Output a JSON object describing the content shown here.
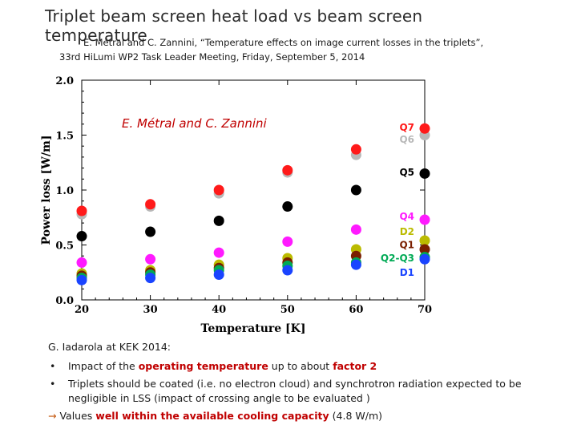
{
  "slide": {
    "title_line1": "Triplet beam screen heat load vs beam screen",
    "title_line2": "temperature",
    "source_line1": "E. Métral and C. Zannini, “Temperature effects on image current losses in the triplets”,",
    "source_line2": "33rd HiLumi WP2 Task Leader Meeting, Friday, September 5, 2014"
  },
  "notes": {
    "heading": "G. Iadarola at KEK 2014:",
    "bullet1_pre": "Impact of the ",
    "bullet1_red1": "operating temperature",
    "bullet1_mid": " up to about ",
    "bullet1_red2": "factor 2",
    "bullet2": "Triplets should be coated (i.e. no electron cloud) and synchrotron radiation expected to be negligible in LSS (impact of crossing angle to be evaluated )",
    "arrow": "→",
    "conclusion_pre": " Values ",
    "conclusion_red": "well within the available cooling capacity",
    "conclusion_post": " (4.8 W/m)"
  },
  "chart_data": {
    "type": "scatter",
    "annotation": "E. Métral and C. Zannini",
    "xlabel": "Temperature [K]",
    "ylabel": "Power loss [W/m]",
    "xlim": [
      20,
      70
    ],
    "ylim": [
      0.0,
      2.0
    ],
    "xticks": [
      "20",
      "30",
      "40",
      "50",
      "60",
      "70"
    ],
    "yticks": [
      "0.0",
      "0.5",
      "1.0",
      "1.5",
      "2.0"
    ],
    "grid": false,
    "x": [
      20,
      30,
      40,
      50,
      60,
      70
    ],
    "series": [
      {
        "name": "Q6",
        "color": "#b8b8b8",
        "values": [
          0.78,
          0.85,
          0.97,
          1.16,
          1.32,
          1.5
        ],
        "label_y": 1.46
      },
      {
        "name": "Q7",
        "color": "#ff1a1a",
        "values": [
          0.81,
          0.87,
          1.0,
          1.18,
          1.37,
          1.56
        ],
        "label_y": 1.57
      },
      {
        "name": "Q5",
        "color": "#000000",
        "values": [
          0.58,
          0.62,
          0.72,
          0.85,
          1.0,
          1.15
        ],
        "label_y": 1.16
      },
      {
        "name": "Q4",
        "color": "#ff1aff",
        "values": [
          0.34,
          0.37,
          0.43,
          0.53,
          0.64,
          0.73
        ],
        "label_y": 0.76
      },
      {
        "name": "D2",
        "color": "#bbbb00",
        "values": [
          0.24,
          0.27,
          0.32,
          0.38,
          0.46,
          0.54
        ],
        "label_y": 0.62
      },
      {
        "name": "Q1",
        "color": "#7a1f00",
        "values": [
          0.22,
          0.25,
          0.29,
          0.34,
          0.4,
          0.46
        ],
        "label_y": 0.5
      },
      {
        "name": "Q2-Q3",
        "color": "#00aa55",
        "values": [
          0.2,
          0.23,
          0.27,
          0.31,
          0.34,
          0.39
        ],
        "label_y": 0.38
      },
      {
        "name": "D1",
        "color": "#1a44ff",
        "values": [
          0.18,
          0.2,
          0.23,
          0.27,
          0.32,
          0.37
        ],
        "label_y": 0.25
      }
    ]
  }
}
